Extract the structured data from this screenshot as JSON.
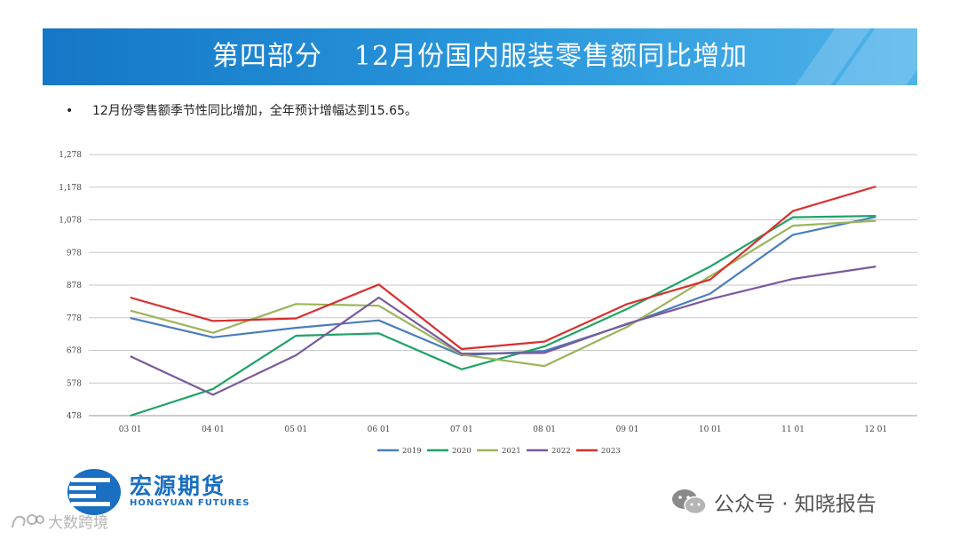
{
  "header": {
    "title_part": "第四部分",
    "title_text": "12月份国内服装零售额同比增加"
  },
  "bullet": "12月份零售额季节性同比增加，全年预计增幅达到15.65。",
  "brand": {
    "name_cn": "宏源期货",
    "name_en": "HONGYUAN FUTURES",
    "color": "#1a6fc0"
  },
  "watermark": {
    "wechat": "公众号 · 知晓报告",
    "corner": "大数跨境"
  },
  "chart_data": {
    "type": "line",
    "categories": [
      "03 01",
      "04 01",
      "05 01",
      "06 01",
      "07 01",
      "08 01",
      "09 01",
      "10 01",
      "11 01",
      "12 01"
    ],
    "ylim": [
      478,
      1278
    ],
    "yticks": [
      478,
      578,
      678,
      778,
      878,
      978,
      1078,
      1178,
      1278
    ],
    "ytick_labels": [
      "478",
      "578",
      "678",
      "778",
      "878",
      "978",
      "1,078",
      "1,178",
      "1,278"
    ],
    "grid": true,
    "legend": "bottom",
    "series": [
      {
        "name": "2019",
        "color": "#4a7ebb",
        "values": [
          777,
          718,
          747,
          770,
          663,
          676,
          758,
          852,
          1032,
          1087
        ]
      },
      {
        "name": "2020",
        "color": "#1fa367",
        "values": [
          478,
          560,
          723,
          730,
          620,
          690,
          805,
          935,
          1086,
          1090
        ]
      },
      {
        "name": "2021",
        "color": "#9bb55a",
        "values": [
          800,
          732,
          820,
          815,
          665,
          630,
          750,
          905,
          1060,
          1075
        ]
      },
      {
        "name": "2022",
        "color": "#7a5a9c",
        "values": [
          660,
          542,
          663,
          840,
          668,
          670,
          760,
          835,
          897,
          935
        ]
      },
      {
        "name": "2023",
        "color": "#d7302e",
        "values": [
          840,
          768,
          776,
          880,
          682,
          705,
          820,
          895,
          1105,
          1180
        ]
      }
    ]
  }
}
